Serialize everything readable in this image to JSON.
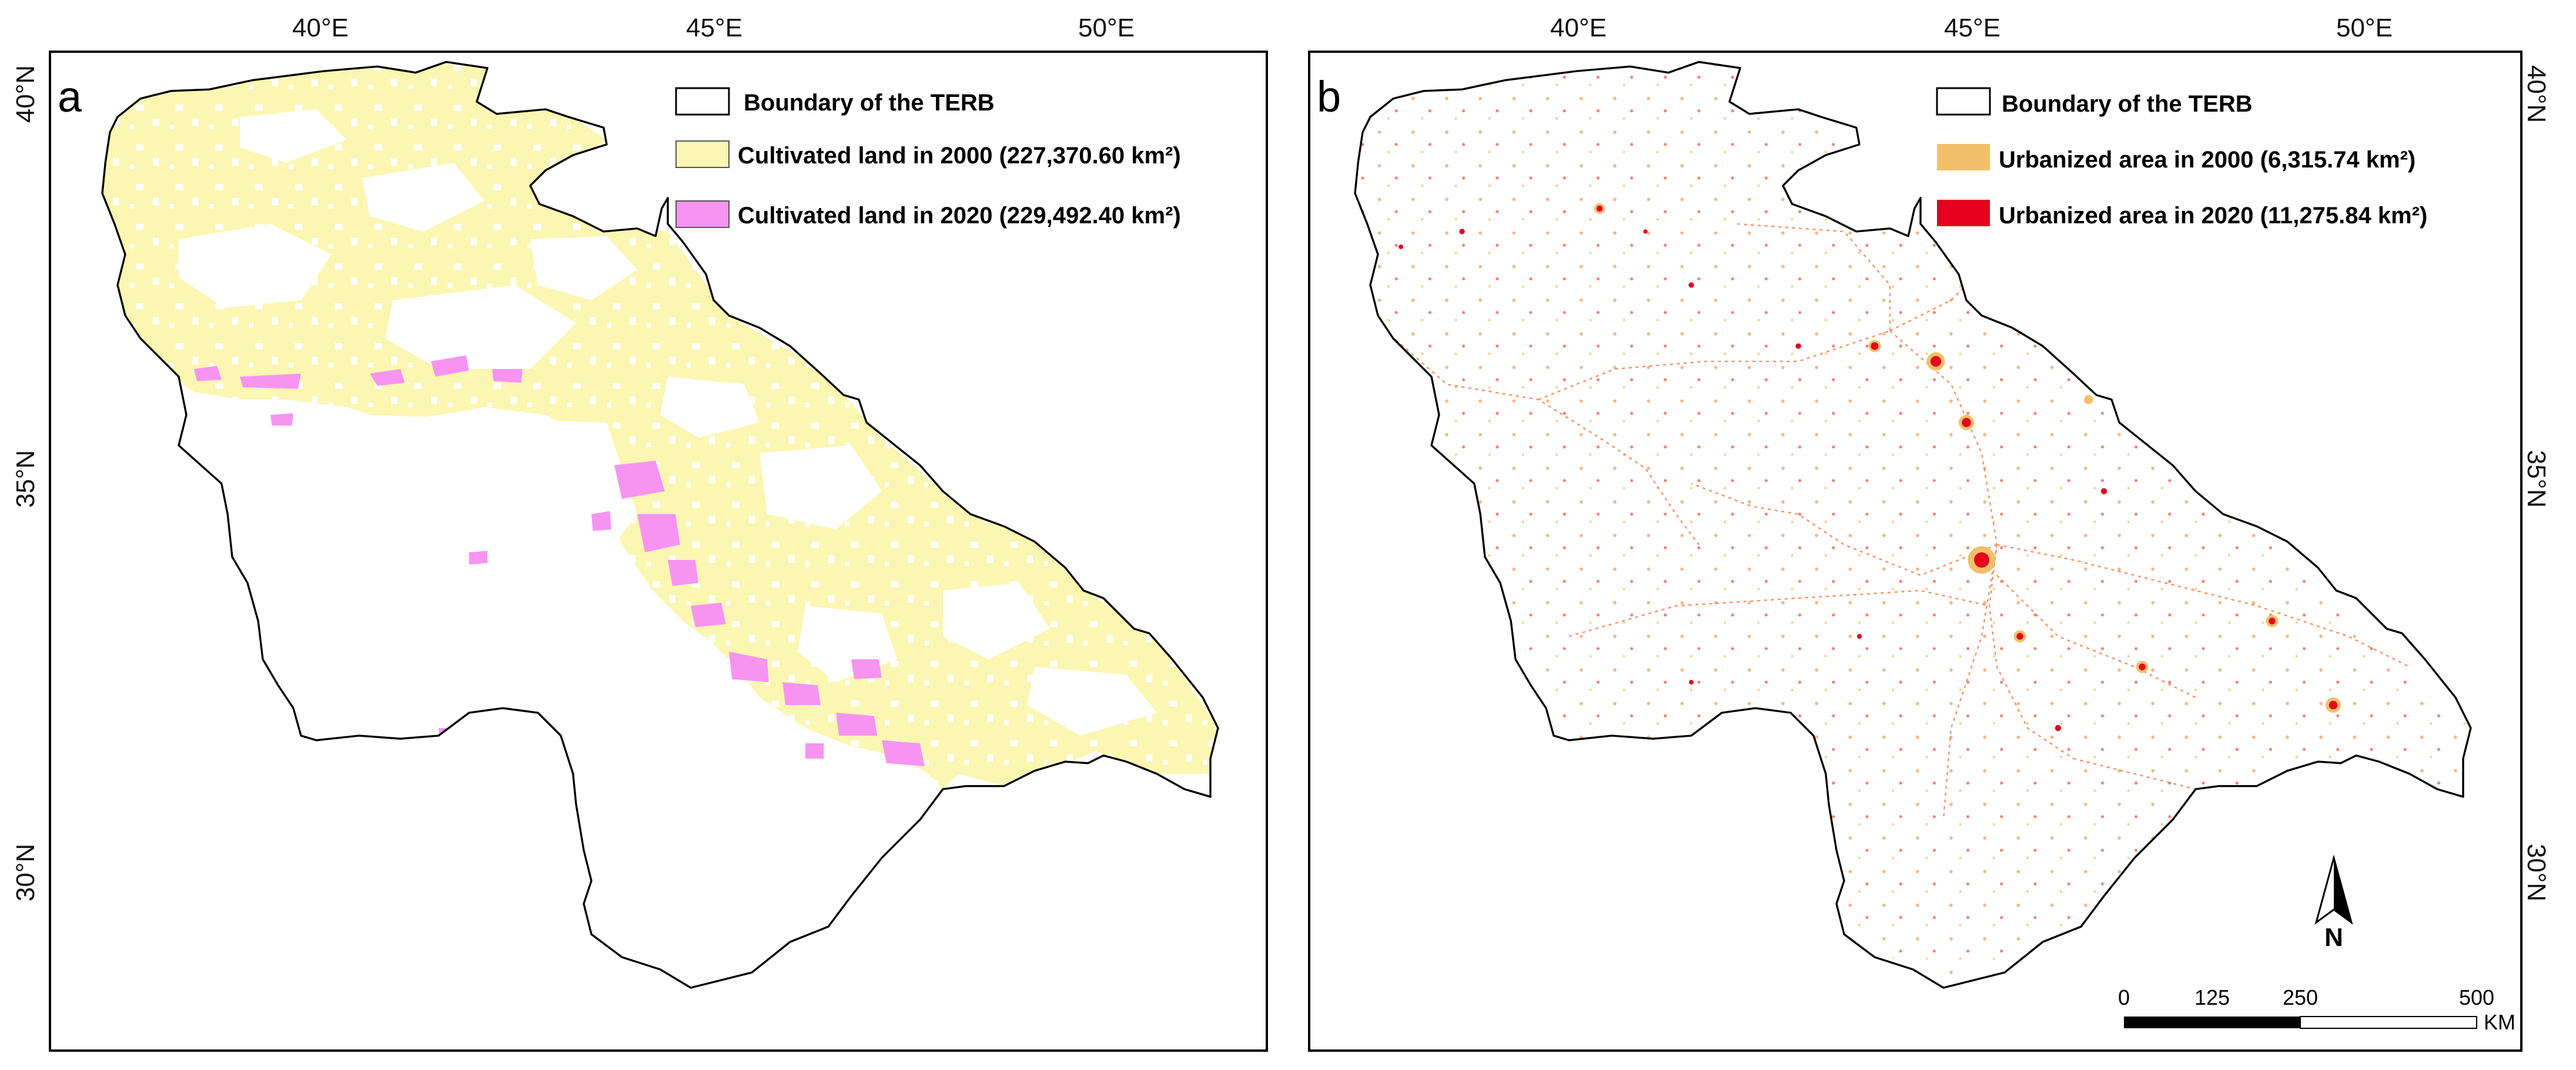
{
  "figure": {
    "top_longitude_ticks": [
      "40°E",
      "45°E",
      "50°E"
    ],
    "left_latitude_ticks": [
      "40°N",
      "35°N",
      "30°N"
    ],
    "right_latitude_ticks": [
      "40°N",
      "35°N",
      "30°N"
    ]
  },
  "panels": [
    {
      "letter": "a",
      "legend": [
        {
          "label": "Boundary of the TERB",
          "swatch": "#ffffff"
        },
        {
          "label": "Cultivated land in 2000 (227,370.60 km²)",
          "swatch": "#fbf6b1"
        },
        {
          "label": "Cultivated land in 2020 (229,492.40 km²)",
          "swatch": "#f794f2"
        }
      ]
    },
    {
      "letter": "b",
      "legend": [
        {
          "label": "Boundary of the TERB",
          "swatch": "#ffffff"
        },
        {
          "label": "Urbanized area in 2000 (6,315.74 km²)",
          "swatch": "#f2c06a"
        },
        {
          "label": "Urbanized area in 2020 (11,275.84 km²)",
          "swatch": "#e5001d"
        }
      ]
    }
  ],
  "north_arrow": {
    "label": "N"
  },
  "scale_bar": {
    "ticks": [
      "0",
      "125",
      "250",
      "500"
    ],
    "unit": "KM"
  },
  "colors": {
    "boundary": "#000000",
    "cultivated_2000": "#fbf6b1",
    "cultivated_2020": "#f794f2",
    "urban_2000": "#f2c06a",
    "urban_2020": "#e5001d"
  }
}
